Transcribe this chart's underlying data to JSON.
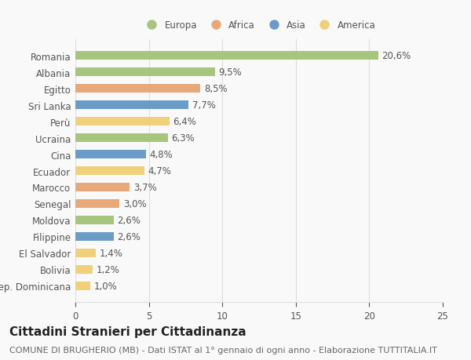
{
  "countries": [
    "Rep. Dominicana",
    "Bolivia",
    "El Salvador",
    "Filippine",
    "Moldova",
    "Senegal",
    "Marocco",
    "Ecuador",
    "Cina",
    "Ucraina",
    "Perù",
    "Sri Lanka",
    "Egitto",
    "Albania",
    "Romania"
  ],
  "values": [
    1.0,
    1.2,
    1.4,
    2.6,
    2.6,
    3.0,
    3.7,
    4.7,
    4.8,
    6.3,
    6.4,
    7.7,
    8.5,
    9.5,
    20.6
  ],
  "categories": [
    "America",
    "America",
    "America",
    "Asia",
    "Europa",
    "Africa",
    "Africa",
    "America",
    "Asia",
    "Europa",
    "America",
    "Asia",
    "Africa",
    "Europa",
    "Europa"
  ],
  "colors": {
    "Europa": "#a8c57e",
    "Africa": "#e8a97a",
    "Asia": "#6b9cc7",
    "America": "#f0d07a"
  },
  "legend_order": [
    "Europa",
    "Africa",
    "Asia",
    "America"
  ],
  "xlim": [
    0,
    25
  ],
  "xticks": [
    0,
    5,
    10,
    15,
    20,
    25
  ],
  "title": "Cittadini Stranieri per Cittadinanza",
  "subtitle": "COMUNE DI BRUGHERIO (MB) - Dati ISTAT al 1° gennaio di ogni anno - Elaborazione TUTTITALIA.IT",
  "background_color": "#f9f9f9",
  "bar_height": 0.55,
  "title_fontsize": 11,
  "subtitle_fontsize": 8,
  "label_fontsize": 8.5,
  "tick_fontsize": 8.5
}
